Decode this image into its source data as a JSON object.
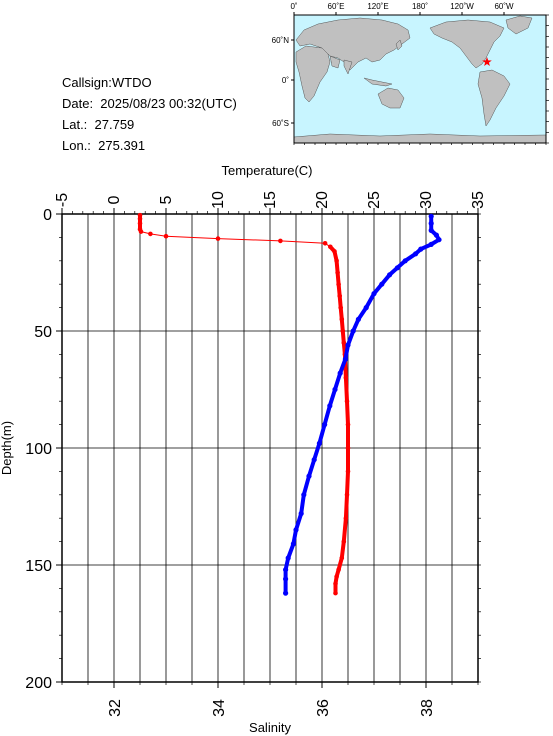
{
  "station": {
    "callsign_text": "Callsign:WTDO",
    "date_text": "Date:  2025/08/23 00:32(UTC)",
    "lat_text": "Lat.:  27.759",
    "lon_text": "Lon.:  275.391"
  },
  "map": {
    "top_labels": [
      "0˚",
      "60˚E",
      "120˚E",
      "180˚",
      "120˚W",
      "60˚W"
    ],
    "left_labels": [
      "60˚N",
      "0˚",
      "60˚S"
    ],
    "ocean_color": "#c8f5ff",
    "land_color": "#c0c0c0",
    "marker_color": "#ff0000",
    "marker_icon": "star"
  },
  "chart_data": {
    "type": "line",
    "temperature_axis": {
      "label": "Temperature(C)",
      "range": [
        -5,
        35
      ],
      "ticks": [
        -5,
        0,
        5,
        10,
        15,
        20,
        25,
        30,
        35
      ]
    },
    "salinity_axis": {
      "label": "Salinity",
      "range": [
        31,
        39
      ],
      "ticks": [
        32,
        34,
        36,
        38
      ]
    },
    "depth_axis": {
      "label": "Depth(m)",
      "range": [
        0,
        200
      ],
      "ticks": [
        0,
        50,
        100,
        150,
        200
      ],
      "inverted": true
    },
    "grid": true,
    "series": [
      {
        "color": "#ff0000",
        "axis": "temperature",
        "points": [
          [
            2.5,
            0.5
          ],
          [
            2.5,
            2
          ],
          [
            2.5,
            4
          ],
          [
            2.5,
            6.5
          ],
          [
            2.6,
            7.5
          ],
          [
            3.5,
            8.5
          ],
          [
            5,
            9.5
          ],
          [
            10,
            10.5
          ],
          [
            16,
            11.5
          ],
          [
            20.3,
            12.5
          ],
          [
            20.8,
            14
          ],
          [
            21.2,
            16
          ],
          [
            21.4,
            20
          ],
          [
            21.5,
            25
          ],
          [
            21.6,
            30
          ],
          [
            21.7,
            35
          ],
          [
            21.8,
            40
          ],
          [
            21.9,
            45
          ],
          [
            22,
            50
          ],
          [
            22.1,
            55
          ],
          [
            22.2,
            60
          ],
          [
            22.3,
            70
          ],
          [
            22.4,
            80
          ],
          [
            22.5,
            90
          ],
          [
            22.5,
            100
          ],
          [
            22.5,
            110
          ],
          [
            22.4,
            120
          ],
          [
            22.3,
            130
          ],
          [
            22.1,
            140
          ],
          [
            21.9,
            147
          ],
          [
            21.6,
            152
          ],
          [
            21.4,
            155
          ],
          [
            21.3,
            158
          ],
          [
            21.3,
            162
          ]
        ]
      },
      {
        "color": "#0000ff",
        "axis": "salinity",
        "points": [
          [
            38.1,
            1
          ],
          [
            38.1,
            4
          ],
          [
            38.1,
            7
          ],
          [
            38.2,
            9
          ],
          [
            38.25,
            11
          ],
          [
            38.1,
            13
          ],
          [
            37.9,
            15
          ],
          [
            37.8,
            17
          ],
          [
            37.6,
            20
          ],
          [
            37.45,
            23
          ],
          [
            37.3,
            26
          ],
          [
            37.15,
            30
          ],
          [
            37,
            34
          ],
          [
            36.85,
            40
          ],
          [
            36.7,
            45
          ],
          [
            36.6,
            50
          ],
          [
            36.5,
            56
          ],
          [
            36.45,
            62
          ],
          [
            36.35,
            68
          ],
          [
            36.25,
            75
          ],
          [
            36.15,
            82
          ],
          [
            36.05,
            90
          ],
          [
            35.95,
            98
          ],
          [
            35.85,
            105
          ],
          [
            35.75,
            112
          ],
          [
            35.65,
            120
          ],
          [
            35.6,
            128
          ],
          [
            35.5,
            135
          ],
          [
            35.45,
            141
          ],
          [
            35.35,
            147
          ],
          [
            35.3,
            152
          ],
          [
            35.3,
            156
          ],
          [
            35.3,
            162
          ]
        ]
      }
    ]
  }
}
